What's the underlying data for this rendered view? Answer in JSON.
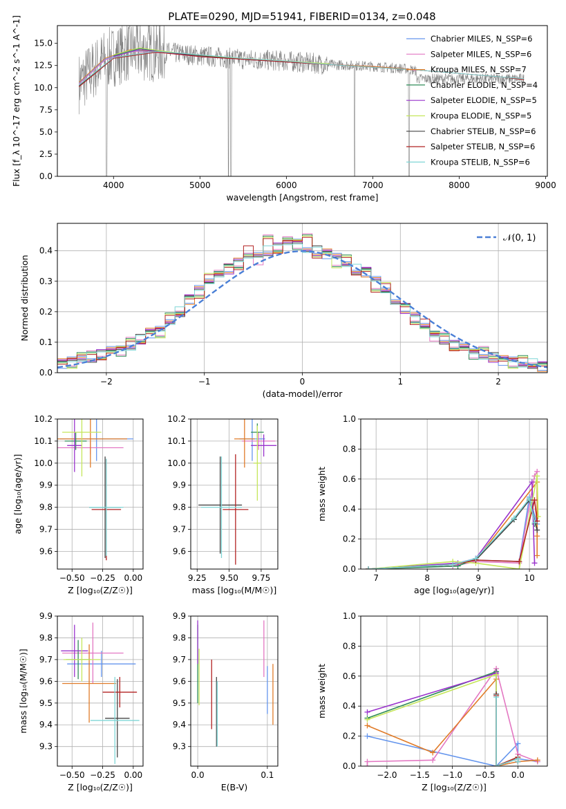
{
  "figure": {
    "title": "PLATE=0290, MJD=51941, FIBERID=0134, z=0.048"
  },
  "colors": [
    "#6495ed",
    "#e377c2",
    "#e07b28",
    "#2e8b57",
    "#9932cc",
    "#c5e65a",
    "#444444",
    "#b22222",
    "#7fd6d6"
  ],
  "chart_data": [
    {
      "id": "spectrum",
      "type": "line",
      "xlabel": "wavelength [Angstrom, rest frame]",
      "ylabel": "Flux [f_λ 10^-17 erg cm^-2 s^-1 A^-1]",
      "xlim": [
        3350,
        9020
      ],
      "ylim": [
        0,
        17
      ],
      "xticks": [
        4000,
        5000,
        6000,
        7000,
        8000,
        9000
      ],
      "yticks": [
        0.0,
        2.5,
        5.0,
        7.5,
        10.0,
        12.5,
        15.0
      ],
      "legend_position": "top-right",
      "series": [
        {
          "name": "Chabrier MILES, N_SSP=6",
          "x": [
            3600,
            3900,
            4200,
            4600,
            5000,
            5500,
            6000,
            6500,
            7000,
            7400,
            7500
          ],
          "y": [
            10.5,
            13.2,
            14.2,
            14.0,
            13.6,
            13.2,
            13.0,
            12.6,
            12.4,
            12.1,
            11.9
          ]
        },
        {
          "name": "Salpeter MILES, N_SSP=6",
          "x": [
            3600,
            3900,
            4200,
            4600,
            5000,
            5500,
            6000,
            6500,
            7000,
            7400,
            7500
          ],
          "y": [
            10.4,
            13.1,
            14.1,
            13.9,
            13.5,
            13.2,
            12.9,
            12.6,
            12.4,
            12.1,
            11.9
          ]
        },
        {
          "name": "Kroupa MILES, N_SSP=7",
          "x": [
            3600,
            3900,
            4200,
            4600,
            5000,
            5500,
            6000,
            6500,
            7000,
            7400,
            7500
          ],
          "y": [
            10.6,
            13.3,
            14.3,
            14.0,
            13.6,
            13.3,
            13.0,
            12.6,
            12.4,
            12.1,
            12.0
          ]
        },
        {
          "name": "Chabrier ELODIE, N_SSP=4",
          "x": [
            4000,
            4300,
            4600,
            5000,
            5500,
            6000,
            6500
          ],
          "y": [
            13.6,
            14.4,
            14.0,
            13.6,
            13.2,
            12.9,
            12.6
          ]
        },
        {
          "name": "Salpeter ELODIE, N_SSP=5",
          "x": [
            4000,
            4300,
            4600,
            5000,
            5500,
            6000,
            6500
          ],
          "y": [
            13.5,
            14.3,
            14.0,
            13.5,
            13.2,
            12.9,
            12.6
          ]
        },
        {
          "name": "Kroupa ELODIE, N_SSP=5",
          "x": [
            4000,
            4300,
            4600,
            5000,
            5500,
            6000,
            6500
          ],
          "y": [
            13.7,
            14.5,
            14.1,
            13.6,
            13.3,
            13.0,
            12.7
          ]
        },
        {
          "name": "Chabrier STELIB, N_SSP=6",
          "x": [
            3600,
            4000,
            4500,
            5000,
            5500,
            6000,
            6500,
            7000,
            7500,
            8000,
            8500,
            8750
          ],
          "y": [
            10.2,
            13.4,
            14.1,
            13.6,
            13.2,
            12.9,
            12.6,
            12.3,
            12.0,
            11.6,
            11.2,
            10.9
          ]
        },
        {
          "name": "Salpeter STELIB, N_SSP=6",
          "x": [
            3600,
            4000,
            4500,
            5000,
            5500,
            6000,
            6500,
            7000,
            7500,
            8000,
            8500,
            8750
          ],
          "y": [
            10.1,
            13.3,
            14.0,
            13.5,
            13.2,
            12.9,
            12.6,
            12.3,
            12.0,
            11.6,
            11.2,
            10.9
          ]
        },
        {
          "name": "Kroupa STELIB, N_SSP=6",
          "x": [
            3600,
            4000,
            4500,
            5000,
            5500,
            6000,
            6500,
            7000,
            7500,
            8000,
            8500,
            8750
          ],
          "y": [
            10.3,
            13.4,
            14.1,
            13.7,
            13.3,
            13.0,
            12.6,
            12.3,
            12.0,
            11.6,
            11.2,
            11.0
          ]
        }
      ]
    },
    {
      "id": "residuals",
      "type": "line",
      "xlabel": "(data-model)/error",
      "ylabel": "Normed distribution",
      "xlim": [
        -2.5,
        2.5
      ],
      "ylim": [
        0,
        0.49
      ],
      "xticks": [
        -2,
        -1,
        0,
        1,
        2
      ],
      "yticks": [
        0.0,
        0.1,
        0.2,
        0.3,
        0.4
      ],
      "legend_position": "top-right",
      "legend": "𝒩(0, 1)",
      "gaussian": {
        "mean": 0,
        "sigma": 1
      },
      "hist_bins": [
        -2.5,
        2.5,
        50
      ],
      "histograms": [
        [
          0.03,
          0.04,
          0.05,
          0.05,
          0.06,
          0.07,
          0.08,
          0.09,
          0.11,
          0.13,
          0.14,
          0.17,
          0.2,
          0.24,
          0.27,
          0.3,
          0.33,
          0.34,
          0.36,
          0.38,
          0.39,
          0.4,
          0.41,
          0.42,
          0.43,
          0.41,
          0.4,
          0.39,
          0.38,
          0.36,
          0.34,
          0.33,
          0.3,
          0.27,
          0.24,
          0.21,
          0.18,
          0.15,
          0.13,
          0.11,
          0.09,
          0.08,
          0.07,
          0.06,
          0.05,
          0.04,
          0.04,
          0.03,
          0.03,
          0.02
        ],
        [
          0.04,
          0.03,
          0.05,
          0.06,
          0.05,
          0.08,
          0.07,
          0.1,
          0.1,
          0.14,
          0.13,
          0.18,
          0.19,
          0.25,
          0.26,
          0.31,
          0.32,
          0.35,
          0.35,
          0.4,
          0.37,
          0.44,
          0.4,
          0.45,
          0.42,
          0.44,
          0.38,
          0.4,
          0.36,
          0.37,
          0.32,
          0.34,
          0.28,
          0.28,
          0.22,
          0.22,
          0.17,
          0.16,
          0.12,
          0.12,
          0.08,
          0.09,
          0.06,
          0.07,
          0.05,
          0.05,
          0.03,
          0.04,
          0.02,
          0.03
        ]
      ]
    },
    {
      "id": "age-vs-Z",
      "type": "scatter",
      "xlabel": "Z [log₁₀(Z/Z☉)]",
      "ylabel": "age  [log₁₀(age/yr)]",
      "xlim": [
        -0.62,
        0.08
      ],
      "ylim": [
        9.52,
        10.2
      ],
      "xticks": [
        -0.5,
        -0.25,
        0.0
      ],
      "yticks": [
        9.6,
        9.7,
        9.8,
        9.9,
        10.0,
        10.1,
        10.2
      ],
      "points": [
        {
          "x": -0.3,
          "y": 10.11,
          "xerr": 0.3,
          "yerr": 0.1
        },
        {
          "x": -0.35,
          "y": 10.07,
          "xerr": 0.27,
          "yerr": 0.03
        },
        {
          "x": -0.35,
          "y": 10.11,
          "xerr": 0.3,
          "yerr": 0.13
        },
        {
          "x": -0.47,
          "y": 10.1,
          "xerr": 0.09,
          "yerr": 0.04
        },
        {
          "x": -0.48,
          "y": 10.08,
          "xerr": 0.06,
          "yerr": 0.12
        },
        {
          "x": -0.42,
          "y": 10.14,
          "xerr": 0.16,
          "yerr": 0.2
        },
        {
          "x": -0.23,
          "y": 9.8,
          "xerr": 0.13,
          "yerr": 0.23
        },
        {
          "x": -0.22,
          "y": 9.79,
          "xerr": 0.12,
          "yerr": 0.23
        },
        {
          "x": -0.22,
          "y": 9.8,
          "xerr": 0.14,
          "yerr": 0.22
        }
      ]
    },
    {
      "id": "age-vs-mass",
      "type": "scatter",
      "xlabel": "mass [log₁₀(M/M☉)]",
      "xlim": [
        9.2,
        9.88
      ],
      "ylim": [
        9.52,
        10.2
      ],
      "xticks": [
        9.25,
        9.5,
        9.75
      ],
      "yticks": [
        9.6,
        9.7,
        9.8,
        9.9,
        10.0,
        10.1,
        10.2
      ],
      "points": [
        {
          "x": 9.68,
          "y": 10.11,
          "xerr": 0.1,
          "yerr": 0.1
        },
        {
          "x": 9.73,
          "y": 10.1,
          "xerr": 0.13,
          "yerr": 0.04
        },
        {
          "x": 9.62,
          "y": 10.11,
          "xerr": 0.08,
          "yerr": 0.13
        },
        {
          "x": 9.72,
          "y": 10.14,
          "xerr": 0.05,
          "yerr": 0.04
        },
        {
          "x": 9.77,
          "y": 10.08,
          "xerr": 0.1,
          "yerr": 0.05
        },
        {
          "x": 9.72,
          "y": 10.0,
          "xerr": 0.03,
          "yerr": 0.17
        },
        {
          "x": 9.43,
          "y": 9.81,
          "xerr": 0.17,
          "yerr": 0.22
        },
        {
          "x": 9.55,
          "y": 9.79,
          "xerr": 0.1,
          "yerr": 0.25
        },
        {
          "x": 9.44,
          "y": 9.8,
          "xerr": 0.16,
          "yerr": 0.23
        }
      ]
    },
    {
      "id": "weight-vs-age",
      "type": "line",
      "xlabel": "age  [log₁₀(age/yr)]",
      "ylabel": "mass weight",
      "xlim": [
        6.7,
        10.35
      ],
      "ylim": [
        0,
        1.0
      ],
      "xticks": [
        7,
        8,
        9,
        10
      ],
      "yticks": [
        0.0,
        0.2,
        0.4,
        0.6,
        0.8,
        1.0
      ],
      "series": [
        {
          "x": [
            6.85,
            8.5,
            8.95,
            9.8,
            10.0,
            10.15
          ],
          "y": [
            0.0,
            0.03,
            0.06,
            0.05,
            0.48,
            0.3
          ]
        },
        {
          "x": [
            6.85,
            8.5,
            8.95,
            9.8,
            10.1,
            10.15
          ],
          "y": [
            0.0,
            0.02,
            0.05,
            0.04,
            0.62,
            0.65
          ]
        },
        {
          "x": [
            6.85,
            8.5,
            8.95,
            10.15,
            10.15,
            10.15
          ],
          "y": [
            0.0,
            0.03,
            0.06,
            0.58,
            0.22,
            0.09
          ]
        },
        {
          "x": [
            6.85,
            8.6,
            8.95,
            9.7,
            10.0,
            10.1
          ],
          "y": [
            0.0,
            0.02,
            0.07,
            0.33,
            0.47,
            0.3
          ]
        },
        {
          "x": [
            6.85,
            8.6,
            8.95,
            10.05,
            10.1
          ],
          "y": [
            0.0,
            0.04,
            0.07,
            0.58,
            0.04
          ]
        },
        {
          "x": [
            6.85,
            8.5,
            8.95,
            9.8,
            10.15,
            10.17
          ],
          "y": [
            0.0,
            0.05,
            0.04,
            0.0,
            0.62,
            0.35
          ]
        },
        {
          "x": [
            6.85,
            8.5,
            8.95,
            9.7,
            10.0,
            10.15
          ],
          "y": [
            0.0,
            0.03,
            0.06,
            0.33,
            0.46,
            0.26
          ]
        },
        {
          "x": [
            6.85,
            8.5,
            8.95,
            9.8,
            10.1,
            10.15
          ],
          "y": [
            0.0,
            0.03,
            0.06,
            0.05,
            0.46,
            0.32
          ]
        },
        {
          "x": [
            6.85,
            8.5,
            8.95,
            9.7,
            10.0,
            10.1
          ],
          "y": [
            0.0,
            0.03,
            0.07,
            0.34,
            0.47,
            0.31
          ]
        }
      ]
    },
    {
      "id": "mass-vs-Z",
      "type": "scatter",
      "xlabel": "Z [log₁₀(Z/Z☉)]",
      "ylabel": "mass [log₁₀(M/M☉)]",
      "xlim": [
        -0.62,
        0.08
      ],
      "ylim": [
        9.21,
        9.9
      ],
      "xticks": [
        -0.5,
        -0.25,
        0.0
      ],
      "yticks": [
        9.3,
        9.4,
        9.5,
        9.6,
        9.7,
        9.8,
        9.9
      ],
      "points": [
        {
          "x": -0.26,
          "y": 9.68,
          "xerr": 0.28,
          "yerr": 0.06
        },
        {
          "x": -0.33,
          "y": 9.73,
          "xerr": 0.25,
          "yerr": 0.14
        },
        {
          "x": -0.36,
          "y": 9.59,
          "xerr": 0.22,
          "yerr": 0.18
        },
        {
          "x": -0.45,
          "y": 9.7,
          "xerr": 0.1,
          "yerr": 0.09
        },
        {
          "x": -0.48,
          "y": 9.74,
          "xerr": 0.11,
          "yerr": 0.12
        },
        {
          "x": -0.42,
          "y": 9.7,
          "xerr": 0.15,
          "yerr": 0.1
        },
        {
          "x": -0.13,
          "y": 9.43,
          "xerr": 0.1,
          "yerr": 0.18
        },
        {
          "x": -0.11,
          "y": 9.55,
          "xerr": 0.14,
          "yerr": 0.07
        },
        {
          "x": -0.15,
          "y": 9.42,
          "xerr": 0.2,
          "yerr": 0.2
        }
      ]
    },
    {
      "id": "mass-vs-EBV",
      "type": "scatter",
      "xlabel": "E(B-V)",
      "xlim": [
        -0.01,
        0.115
      ],
      "ylim": [
        9.21,
        9.9
      ],
      "xticks": [
        0.0,
        0.1
      ],
      "yticks": [
        9.3,
        9.4,
        9.5,
        9.6,
        9.7,
        9.8,
        9.9
      ],
      "points": [
        {
          "x": 0.1,
          "y": 9.56,
          "xerr": 0,
          "yerr": 0.11
        },
        {
          "x": 0.095,
          "y": 9.75,
          "xerr": 0,
          "yerr": 0.13
        },
        {
          "x": 0.108,
          "y": 9.54,
          "xerr": 0,
          "yerr": 0.14
        },
        {
          "x": 0.0,
          "y": 9.68,
          "xerr": 0,
          "yerr": 0.18
        },
        {
          "x": 0.0,
          "y": 9.78,
          "xerr": 0,
          "yerr": 0.1
        },
        {
          "x": 0.002,
          "y": 9.62,
          "xerr": 0,
          "yerr": 0.13
        },
        {
          "x": 0.027,
          "y": 9.46,
          "xerr": 0,
          "yerr": 0.16
        },
        {
          "x": 0.02,
          "y": 9.54,
          "xerr": 0,
          "yerr": 0.16
        },
        {
          "x": 0.028,
          "y": 9.45,
          "xerr": 0,
          "yerr": 0.15
        }
      ]
    },
    {
      "id": "weight-vs-Z",
      "type": "line",
      "xlabel": "Z [log₁₀(Z/Z☉)]",
      "ylabel": "mass weight",
      "xlim": [
        -2.4,
        0.45
      ],
      "ylim": [
        0,
        1.0
      ],
      "xticks": [
        -2.0,
        -1.5,
        -1.0,
        -0.5,
        0.0
      ],
      "yticks": [
        0.0,
        0.2,
        0.4,
        0.6,
        0.8,
        1.0
      ],
      "series": [
        {
          "x": [
            -2.3,
            -0.33,
            0.0,
            0.0,
            0.3
          ],
          "y": [
            0.2,
            0.0,
            0.15,
            0.05,
            0.03
          ]
        },
        {
          "x": [
            -2.3,
            -2.3,
            -1.3,
            -0.33,
            0.0,
            0.3
          ],
          "y": [
            0.0,
            0.03,
            0.04,
            0.65,
            0.08,
            0.03
          ]
        },
        {
          "x": [
            -2.3,
            -1.3,
            -0.33,
            -0.33,
            0.0,
            0.3
          ],
          "y": [
            0.27,
            0.09,
            0.58,
            0.0,
            0.03,
            0.04
          ]
        },
        {
          "x": [
            -2.3,
            -0.33,
            -0.33,
            0.0,
            0.0
          ],
          "y": [
            0.32,
            0.63,
            0.0,
            0.05,
            0.03
          ]
        },
        {
          "x": [
            -2.3,
            -0.33,
            -0.33,
            0.0
          ],
          "y": [
            0.36,
            0.62,
            0.0,
            0.05
          ]
        },
        {
          "x": [
            -2.3,
            -0.33,
            -0.33,
            0.0
          ],
          "y": [
            0.31,
            0.61,
            0.0,
            0.06
          ]
        },
        {
          "x": [
            -0.33,
            -0.33,
            0.0,
            0.0
          ],
          "y": [
            0.48,
            0.0,
            0.05,
            0.03
          ]
        },
        {
          "x": [
            -0.33,
            -0.33,
            0.0,
            0.0
          ],
          "y": [
            0.47,
            0.0,
            0.06,
            0.03
          ]
        },
        {
          "x": [
            -0.33,
            -0.33,
            0.0,
            0.0
          ],
          "y": [
            0.46,
            0.0,
            0.05,
            0.03
          ]
        }
      ]
    }
  ]
}
